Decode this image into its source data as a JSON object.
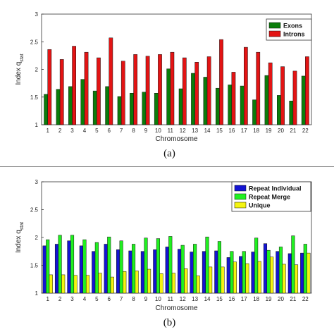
{
  "chart_data": [
    {
      "type": "bar",
      "caption": "(a)",
      "xlabel": "Chromosome",
      "ylabel": "Index q_stat",
      "ylabel_main": "Index q",
      "ylabel_sub": "stat",
      "ylim": [
        1,
        3
      ],
      "yticks": [
        1,
        1.5,
        2,
        2.5,
        3
      ],
      "legend_position": "top-right",
      "categories": [
        "1",
        "2",
        "3",
        "4",
        "5",
        "6",
        "7",
        "8",
        "9",
        "10",
        "11",
        "12",
        "13",
        "14",
        "15",
        "16",
        "17",
        "18",
        "19",
        "20",
        "21",
        "22"
      ],
      "series": [
        {
          "name": "Exons",
          "color": "#0b7d0b",
          "values": [
            1.55,
            1.64,
            1.69,
            1.82,
            1.61,
            1.69,
            1.51,
            1.57,
            1.59,
            1.57,
            2.01,
            1.65,
            1.93,
            1.86,
            1.66,
            1.72,
            1.7,
            1.45,
            1.89,
            1.53,
            1.43,
            1.88
          ]
        },
        {
          "name": "Introns",
          "color": "#e31414",
          "values": [
            2.36,
            2.18,
            2.42,
            2.31,
            2.21,
            2.57,
            2.15,
            2.27,
            2.24,
            2.27,
            2.31,
            2.21,
            2.13,
            2.23,
            2.54,
            1.95,
            2.4,
            2.31,
            2.12,
            2.05,
            1.97,
            2.23
          ]
        }
      ]
    },
    {
      "type": "bar",
      "caption": "(b)",
      "xlabel": "Chromosome",
      "ylabel": "Index q_stat",
      "ylabel_main": "Index q",
      "ylabel_sub": "stat",
      "ylim": [
        1,
        3
      ],
      "yticks": [
        1,
        1.5,
        2,
        2.5,
        3
      ],
      "legend_position": "top-right",
      "categories": [
        "1",
        "2",
        "3",
        "4",
        "5",
        "6",
        "7",
        "8",
        "9",
        "10",
        "11",
        "12",
        "13",
        "14",
        "15",
        "16",
        "17",
        "18",
        "19",
        "20",
        "21",
        "22"
      ],
      "series": [
        {
          "name": "Repeat Individual",
          "color": "#1414d2",
          "values": [
            1.85,
            1.88,
            1.94,
            1.85,
            1.75,
            1.88,
            1.78,
            1.76,
            1.75,
            1.78,
            1.83,
            1.79,
            1.74,
            1.75,
            1.76,
            1.64,
            1.66,
            1.74,
            1.89,
            1.75,
            1.71,
            1.72
          ]
        },
        {
          "name": "Repeat Merge",
          "color": "#20f020",
          "values": [
            1.96,
            2.04,
            2.04,
            1.96,
            1.91,
            2.01,
            1.94,
            1.88,
            1.99,
            1.98,
            2.02,
            1.86,
            1.88,
            2.01,
            1.93,
            1.75,
            1.75,
            1.99,
            1.77,
            1.83,
            2.03,
            1.88
          ]
        },
        {
          "name": "Unique",
          "color": "#f4f411",
          "values": [
            1.33,
            1.33,
            1.32,
            1.32,
            1.36,
            1.29,
            1.39,
            1.4,
            1.43,
            1.35,
            1.36,
            1.44,
            1.31,
            1.47,
            1.47,
            1.56,
            1.53,
            1.57,
            1.65,
            1.52,
            1.51,
            1.72
          ]
        }
      ]
    }
  ]
}
